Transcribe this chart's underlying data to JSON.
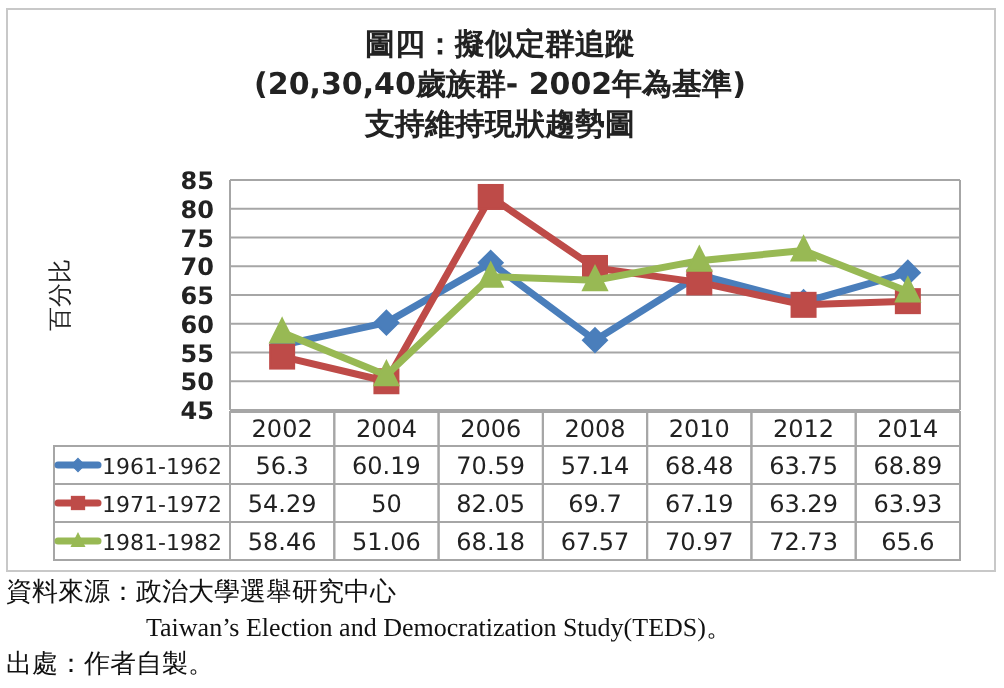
{
  "chart_data": {
    "type": "line",
    "title": "圖四：擬似定群追蹤\n(20,30,40歲族群- 2002年為基準)\n支持維持現狀趨勢圖",
    "ylabel": "百分比",
    "categories": [
      "2002",
      "2004",
      "2006",
      "2008",
      "2010",
      "2012",
      "2014"
    ],
    "series": [
      {
        "name": "1961-1962",
        "color": "#4a7ebb",
        "marker": "diamond",
        "values": [
          56.3,
          60.19,
          70.59,
          57.14,
          68.48,
          63.75,
          68.89
        ]
      },
      {
        "name": "1971-1972",
        "color": "#be4b48",
        "marker": "square",
        "values": [
          54.29,
          50,
          82.05,
          69.7,
          67.19,
          63.29,
          63.93
        ]
      },
      {
        "name": "1981-1982",
        "color": "#98b954",
        "marker": "triangle",
        "values": [
          58.46,
          51.06,
          68.18,
          67.57,
          70.97,
          72.73,
          65.6
        ]
      }
    ],
    "ylim": [
      45,
      85
    ],
    "yticks": [
      45,
      50,
      55,
      60,
      65,
      70,
      75,
      80,
      85
    ],
    "grid": "y",
    "legend": "bottom",
    "data_labels": true,
    "annotations": [
      "資料來源：政治大學選舉研究中心",
      "Taiwan’s Election and Democratization Study(TEDS)。",
      "出處：作者自製。"
    ]
  }
}
